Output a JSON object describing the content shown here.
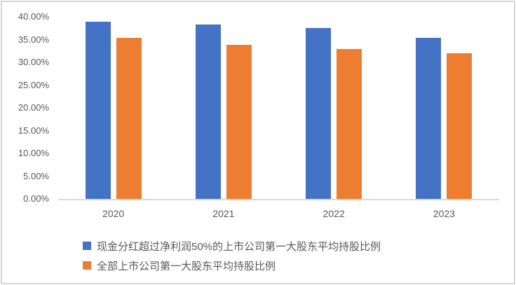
{
  "chart_data": {
    "type": "bar",
    "categories": [
      "2020",
      "2021",
      "2022",
      "2023"
    ],
    "series": [
      {
        "name": "现金分红超过净利润50%的上市公司第一大股东平均持股比例",
        "color": "#4472C4",
        "values": [
          38.9,
          38.3,
          37.5,
          35.4
        ]
      },
      {
        "name": "全部上市公司第一大股东平均持股比例",
        "color": "#ED7D31",
        "values": [
          35.4,
          33.9,
          33.0,
          32.0
        ]
      }
    ],
    "title": "",
    "xlabel": "",
    "ylabel": "",
    "ylim": [
      0,
      40
    ],
    "ytick_step": 5,
    "ytick_labels": [
      "0.00%",
      "5.00%",
      "10.00%",
      "15.00%",
      "20.00%",
      "25.00%",
      "30.00%",
      "35.00%",
      "40.00%"
    ],
    "grid": false,
    "legend_position": "bottom-left"
  },
  "colors": {
    "text": "#595959",
    "axis_line": "#D9D9D9",
    "frame_border": "#D6D6D6",
    "background": "#FFFFFF",
    "series_blue": "#4472C4",
    "series_orange": "#ED7D31"
  }
}
